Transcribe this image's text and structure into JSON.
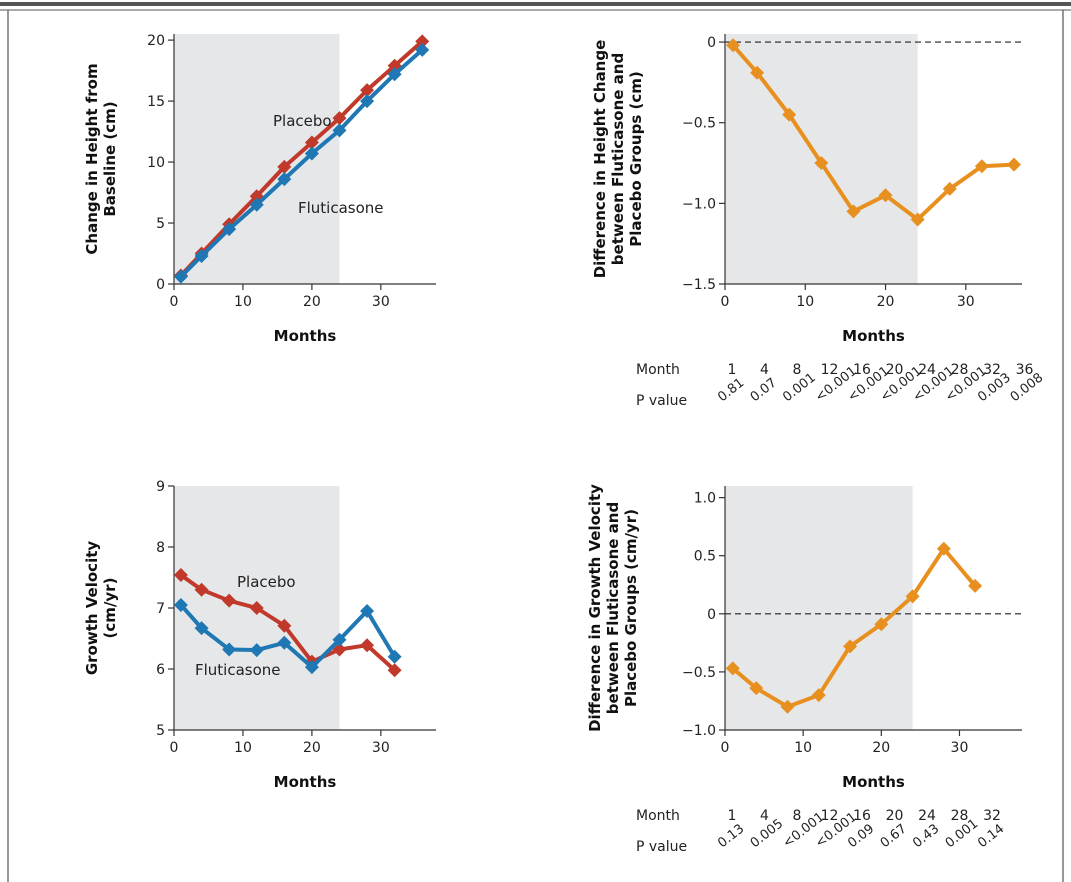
{
  "colors": {
    "placebo": "#c0392b",
    "fluticasone": "#1f77b4",
    "difference": "#e8901f",
    "shade": "#e6e7e9",
    "axis": "#333333",
    "frame": "#555555"
  },
  "chart_data": [
    {
      "type": "line",
      "ylabel": [
        "Change in Height from",
        "Baseline (cm)"
      ],
      "xlabel": "Months",
      "xlim": [
        0,
        38
      ],
      "ylim": [
        0,
        20.5
      ],
      "xticks": [
        0,
        10,
        20,
        30
      ],
      "yticks": [
        0,
        5,
        10,
        15,
        20
      ],
      "shaded_x": [
        0,
        24
      ],
      "series": [
        {
          "name": "Placebo",
          "color_key": "placebo",
          "x": [
            1,
            4,
            8,
            12,
            16,
            20,
            24,
            28,
            32,
            36
          ],
          "y": [
            0.7,
            2.5,
            4.9,
            7.2,
            9.6,
            11.6,
            13.6,
            15.9,
            17.9,
            19.9
          ]
        },
        {
          "name": "Fluticasone",
          "color_key": "fluticasone",
          "x": [
            1,
            4,
            8,
            12,
            16,
            20,
            24,
            28,
            32,
            36
          ],
          "y": [
            0.6,
            2.3,
            4.5,
            6.5,
            8.6,
            10.7,
            12.6,
            15.0,
            17.2,
            19.2
          ]
        }
      ]
    },
    {
      "type": "line",
      "ylabel": [
        "Difference in Height Change",
        "between Fluticasone and",
        "Placebo Groups (cm)"
      ],
      "xlabel": "Months",
      "xlim": [
        0,
        37
      ],
      "ylim": [
        -1.5,
        0.05
      ],
      "xticks": [
        0,
        10,
        20,
        30
      ],
      "yticks": [
        0,
        -0.5,
        -1.0,
        -1.5
      ],
      "ytick_labels": [
        "0",
        "−0.5",
        "−1.0",
        "−1.5"
      ],
      "shaded_x": [
        0,
        24
      ],
      "reference_y": 0,
      "series": [
        {
          "name": "",
          "color_key": "difference",
          "x": [
            1,
            4,
            8,
            12,
            16,
            20,
            24,
            28,
            32,
            36
          ],
          "y": [
            -0.02,
            -0.19,
            -0.45,
            -0.75,
            -1.05,
            -0.95,
            -1.1,
            -0.91,
            -0.77,
            -0.76
          ]
        }
      ],
      "pvalues": {
        "month_label": "Month",
        "pvalue_label": "P value",
        "months": [
          "1",
          "4",
          "8",
          "12",
          "16",
          "20",
          "24",
          "28",
          "32",
          "36"
        ],
        "values": [
          "0.81",
          "0.07",
          "0.001",
          "<0.001",
          "<0.001",
          "<0.001",
          "<0.001",
          "<0.001",
          "0.003",
          "0.008"
        ]
      }
    },
    {
      "type": "line",
      "ylabel": [
        "Growth Velocity",
        "(cm/yr)"
      ],
      "xlabel": "Months",
      "xlim": [
        0,
        38
      ],
      "ylim": [
        5,
        9
      ],
      "xticks": [
        0,
        10,
        20,
        30
      ],
      "yticks": [
        5,
        6,
        7,
        8,
        9
      ],
      "shaded_x": [
        0,
        24
      ],
      "series": [
        {
          "name": "Placebo",
          "color_key": "placebo",
          "x": [
            1,
            4,
            8,
            12,
            16,
            20,
            24,
            28,
            32
          ],
          "y": [
            7.54,
            7.3,
            7.12,
            7.0,
            6.71,
            6.12,
            6.32,
            6.39,
            5.98
          ]
        },
        {
          "name": "Fluticasone",
          "color_key": "fluticasone",
          "x": [
            1,
            4,
            8,
            12,
            16,
            20,
            24,
            28,
            32
          ],
          "y": [
            7.05,
            6.67,
            6.32,
            6.31,
            6.43,
            6.03,
            6.48,
            6.95,
            6.2
          ]
        }
      ]
    },
    {
      "type": "line",
      "ylabel": [
        "Difference in Growth Velocity",
        "between Fluticasone and",
        "Placebo Groups (cm/yr)"
      ],
      "xlabel": "Months",
      "xlim": [
        0,
        38
      ],
      "ylim": [
        -1.0,
        1.1
      ],
      "xticks": [
        0,
        10,
        20,
        30
      ],
      "yticks": [
        1.0,
        0.5,
        0,
        -0.5,
        -1.0
      ],
      "ytick_labels": [
        "1.0",
        "0.5",
        "0",
        "−0.5",
        "−1.0"
      ],
      "shaded_x": [
        0,
        24
      ],
      "reference_y": 0,
      "series": [
        {
          "name": "",
          "color_key": "difference",
          "x": [
            1,
            4,
            8,
            12,
            16,
            20,
            24,
            28,
            32
          ],
          "y": [
            -0.47,
            -0.64,
            -0.8,
            -0.7,
            -0.28,
            -0.09,
            0.15,
            0.56,
            0.24
          ]
        }
      ],
      "pvalues": {
        "month_label": "Month",
        "pvalue_label": "P value",
        "months": [
          "1",
          "4",
          "8",
          "12",
          "16",
          "20",
          "24",
          "28",
          "32"
        ],
        "values": [
          "0.13",
          "0.005",
          "<0.001",
          "<0.001",
          "0.09",
          "0.67",
          "0.43",
          "0.001",
          "0.14"
        ]
      }
    }
  ]
}
